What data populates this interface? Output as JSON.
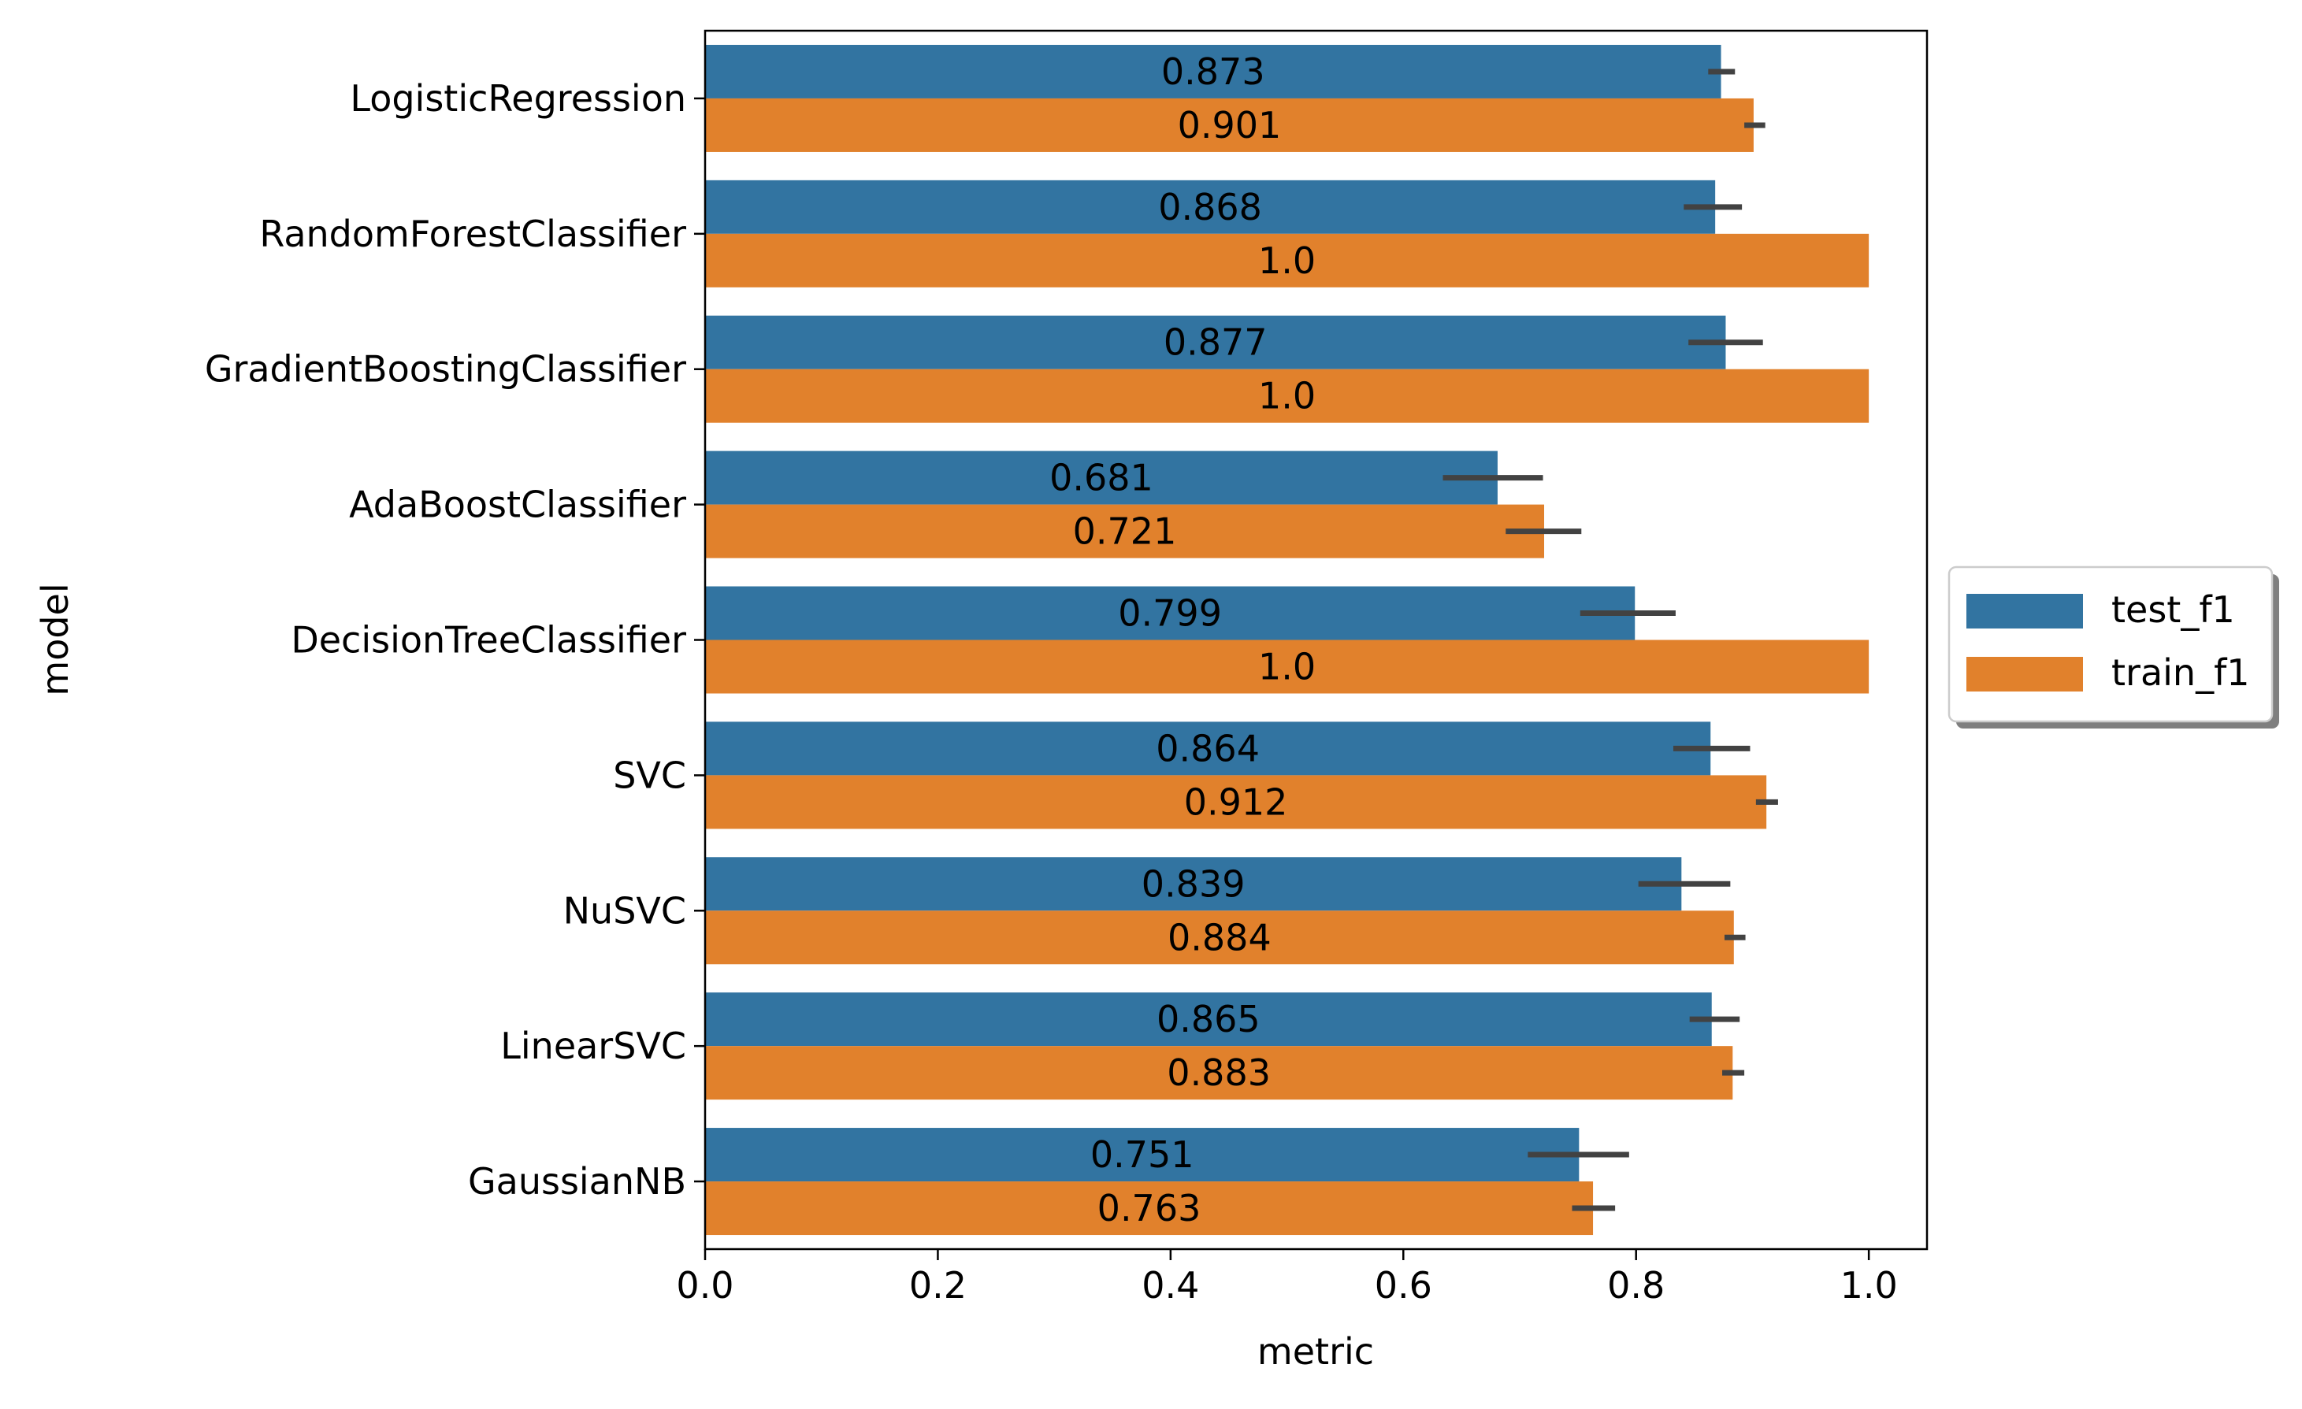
{
  "chart_data": {
    "type": "bar",
    "orientation": "horizontal",
    "title": "",
    "xlabel": "metric",
    "ylabel": "model",
    "xlim": [
      0,
      1.05
    ],
    "xticks": [
      "0.0",
      "0.2",
      "0.4",
      "0.6",
      "0.8",
      "1.0"
    ],
    "grid": false,
    "legend_placement": "center-right-outside",
    "categories": [
      "LogisticRegression",
      "RandomForestClassifier",
      "GradientBoostingClassifier",
      "AdaBoostClassifier",
      "DecisionTreeClassifier",
      "SVC",
      "NuSVC",
      "LinearSVC",
      "GaussianNB"
    ],
    "series": [
      {
        "name": "test_f1",
        "color": "#3274a1",
        "values": [
          0.873,
          0.868,
          0.877,
          0.681,
          0.799,
          0.864,
          0.839,
          0.865,
          0.751
        ],
        "labels": [
          "0.873",
          "0.868",
          "0.877",
          "0.681",
          "0.799",
          "0.864",
          "0.839",
          "0.865",
          "0.751"
        ],
        "error_low": [
          0.862,
          0.841,
          0.845,
          0.634,
          0.752,
          0.832,
          0.802,
          0.846,
          0.707
        ],
        "error_high": [
          0.885,
          0.891,
          0.909,
          0.72,
          0.834,
          0.898,
          0.881,
          0.889,
          0.794
        ]
      },
      {
        "name": "train_f1",
        "color": "#e1812c",
        "values": [
          0.901,
          1.0,
          1.0,
          0.721,
          1.0,
          0.912,
          0.884,
          0.883,
          0.763
        ],
        "labels": [
          "0.901",
          "1.0",
          "1.0",
          "0.721",
          "1.0",
          "0.912",
          "0.884",
          "0.883",
          "0.763"
        ],
        "error_low": [
          0.893,
          1.0,
          1.0,
          0.688,
          1.0,
          0.903,
          0.876,
          0.874,
          0.745
        ],
        "error_high": [
          0.911,
          1.0,
          1.0,
          0.753,
          1.0,
          0.922,
          0.894,
          0.893,
          0.782
        ]
      }
    ]
  }
}
